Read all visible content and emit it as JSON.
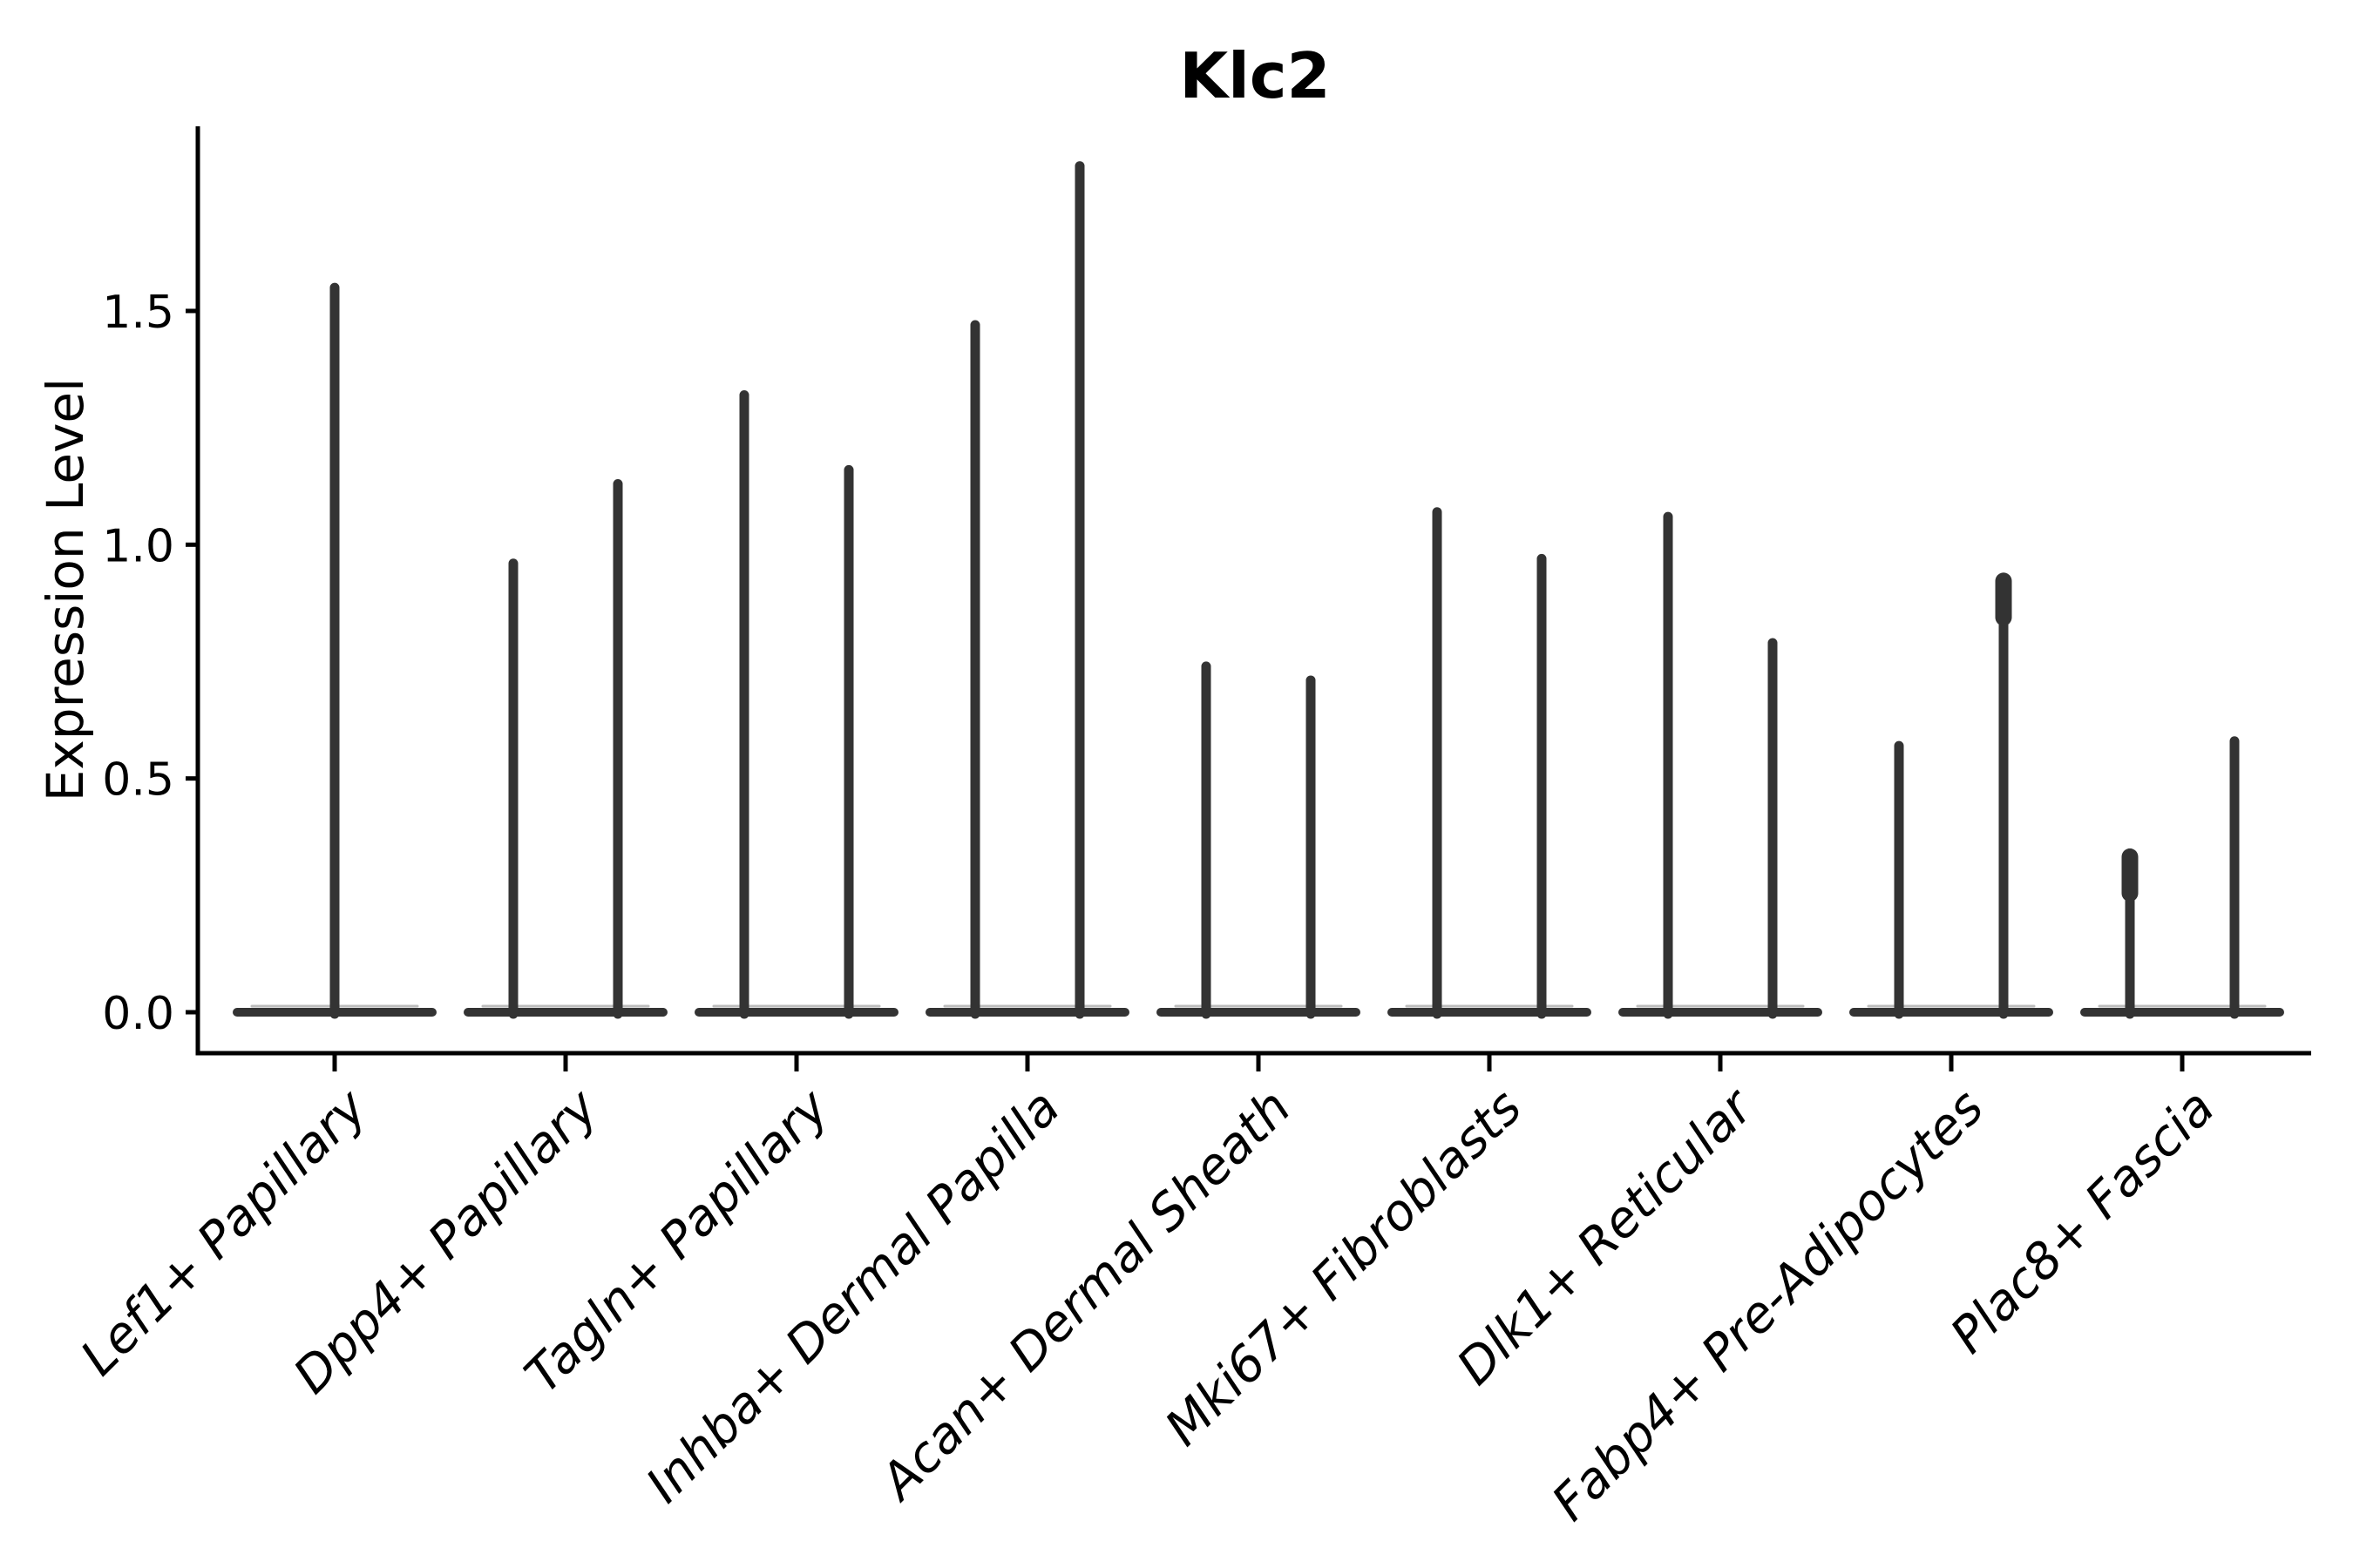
{
  "chart_data": {
    "type": "violin",
    "title": "Klc2",
    "ylabel": "Expression Level",
    "xlabel": "",
    "grid": false,
    "legend": null,
    "ylim": [
      -0.09,
      1.9
    ],
    "ytick_labels": [
      "0.0",
      "0.5",
      "1.0",
      "1.5"
    ],
    "ytick_values": [
      0.0,
      0.5,
      1.0,
      1.5
    ],
    "violin_color": "#333333",
    "violin_highlight_color": "#9a9a9a",
    "axis_color": "#000000",
    "categories": [
      {
        "label": "Lef1+ Papillary",
        "spikes": [
          {
            "dx": 0,
            "value": 1.55
          }
        ]
      },
      {
        "label": "Dpp4+ Papillary",
        "spikes": [
          {
            "dx": -60,
            "value": 0.96
          },
          {
            "dx": 60,
            "value": 1.13
          }
        ]
      },
      {
        "label": "Tagln+ Papillary",
        "spikes": [
          {
            "dx": -60,
            "value": 1.32
          },
          {
            "dx": 60,
            "value": 1.16
          }
        ]
      },
      {
        "label": "Inhba+ Dermal Papilla",
        "spikes": [
          {
            "dx": -60,
            "value": 1.47
          },
          {
            "dx": 60,
            "value": 1.81
          }
        ]
      },
      {
        "label": "Acan+ Dermal Sheath",
        "spikes": [
          {
            "dx": -60,
            "value": 0.74
          },
          {
            "dx": 60,
            "value": 0.71
          }
        ]
      },
      {
        "label": "Mki67+ Fibroblasts",
        "spikes": [
          {
            "dx": -60,
            "value": 1.07
          },
          {
            "dx": 60,
            "value": 0.97
          }
        ]
      },
      {
        "label": "Dlk1+ Reticular",
        "spikes": [
          {
            "dx": -60,
            "value": 1.06
          },
          {
            "dx": 60,
            "value": 0.79
          }
        ]
      },
      {
        "label": "Fabp4+ Pre-Adipocytes",
        "spikes": [
          {
            "dx": -60,
            "value": 0.57
          },
          {
            "dx": 60,
            "value": 0.93,
            "cap": true
          }
        ]
      },
      {
        "label": "Plac8+ Fascia",
        "spikes": [
          {
            "dx": -60,
            "value": 0.34,
            "cap": true
          },
          {
            "dx": 60,
            "value": 0.58
          }
        ]
      }
    ]
  }
}
